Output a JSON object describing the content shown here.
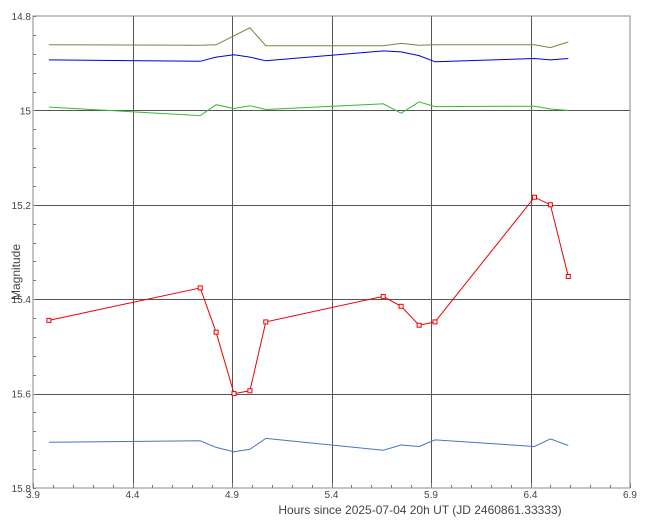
{
  "chart_data": {
    "type": "line",
    "title": "",
    "xlabel": "Hours since 2025-07-04 20h UT (JD 2460861.33333)",
    "ylabel": "Magnitude",
    "xlim": [
      3.9,
      6.9
    ],
    "ylim": [
      14.8,
      15.8
    ],
    "y_inverted": true,
    "grid": true,
    "legend": "none",
    "x_ticks": [
      3.9,
      4.4,
      4.9,
      5.4,
      5.9,
      6.4,
      6.9
    ],
    "x_tick_labels": [
      "3.9",
      "4.4",
      "4.9",
      "5.4",
      "5.9",
      "6.4",
      "6.9"
    ],
    "y_ticks": [
      14.8,
      15.0,
      15.2,
      15.4,
      15.6,
      15.8
    ],
    "y_tick_labels": [
      "14.8",
      "15",
      "15.2",
      "15.4",
      "15.6",
      "15.8"
    ],
    "series": [
      {
        "color": "#808040",
        "markers": false,
        "x": [
          3.98,
          4.74,
          4.82,
          4.99,
          5.07,
          5.66,
          5.75,
          5.84,
          5.92,
          6.42,
          6.5,
          6.59
        ],
        "y": [
          14.861,
          14.862,
          14.861,
          14.825,
          14.863,
          14.863,
          14.858,
          14.862,
          14.861,
          14.861,
          14.867,
          14.855
        ]
      },
      {
        "color": "#0000dd",
        "markers": false,
        "x": [
          3.98,
          4.74,
          4.82,
          4.91,
          4.99,
          5.07,
          5.66,
          5.75,
          5.84,
          5.92,
          6.42,
          6.5,
          6.59
        ],
        "y": [
          14.893,
          14.896,
          14.887,
          14.882,
          14.887,
          14.895,
          14.874,
          14.876,
          14.884,
          14.897,
          14.89,
          14.893,
          14.89
        ]
      },
      {
        "color": "#33bb33",
        "markers": false,
        "x": [
          3.98,
          4.74,
          4.82,
          4.91,
          4.99,
          5.07,
          5.66,
          5.75,
          5.84,
          5.92,
          6.42,
          6.5,
          6.59
        ],
        "y": [
          14.993,
          15.011,
          14.988,
          14.996,
          14.99,
          14.998,
          14.986,
          15.006,
          14.982,
          14.992,
          14.991,
          14.997,
          15.0
        ]
      },
      {
        "color": "#ee0000",
        "markers": true,
        "x": [
          3.98,
          4.74,
          4.82,
          4.91,
          4.99,
          5.07,
          5.66,
          5.75,
          5.84,
          5.92,
          6.42,
          6.5,
          6.59
        ],
        "y": [
          15.445,
          15.376,
          15.47,
          15.6,
          15.594,
          15.448,
          15.394,
          15.415,
          15.455,
          15.448,
          15.184,
          15.2,
          15.352
        ]
      },
      {
        "color": "#4477bb",
        "markers": false,
        "x": [
          3.98,
          4.74,
          4.82,
          4.91,
          4.99,
          5.07,
          5.66,
          5.75,
          5.84,
          5.92,
          6.42,
          6.5,
          6.59
        ],
        "y": [
          15.703,
          15.7,
          15.714,
          15.723,
          15.718,
          15.695,
          15.72,
          15.709,
          15.712,
          15.698,
          15.712,
          15.696,
          15.71
        ]
      }
    ]
  }
}
